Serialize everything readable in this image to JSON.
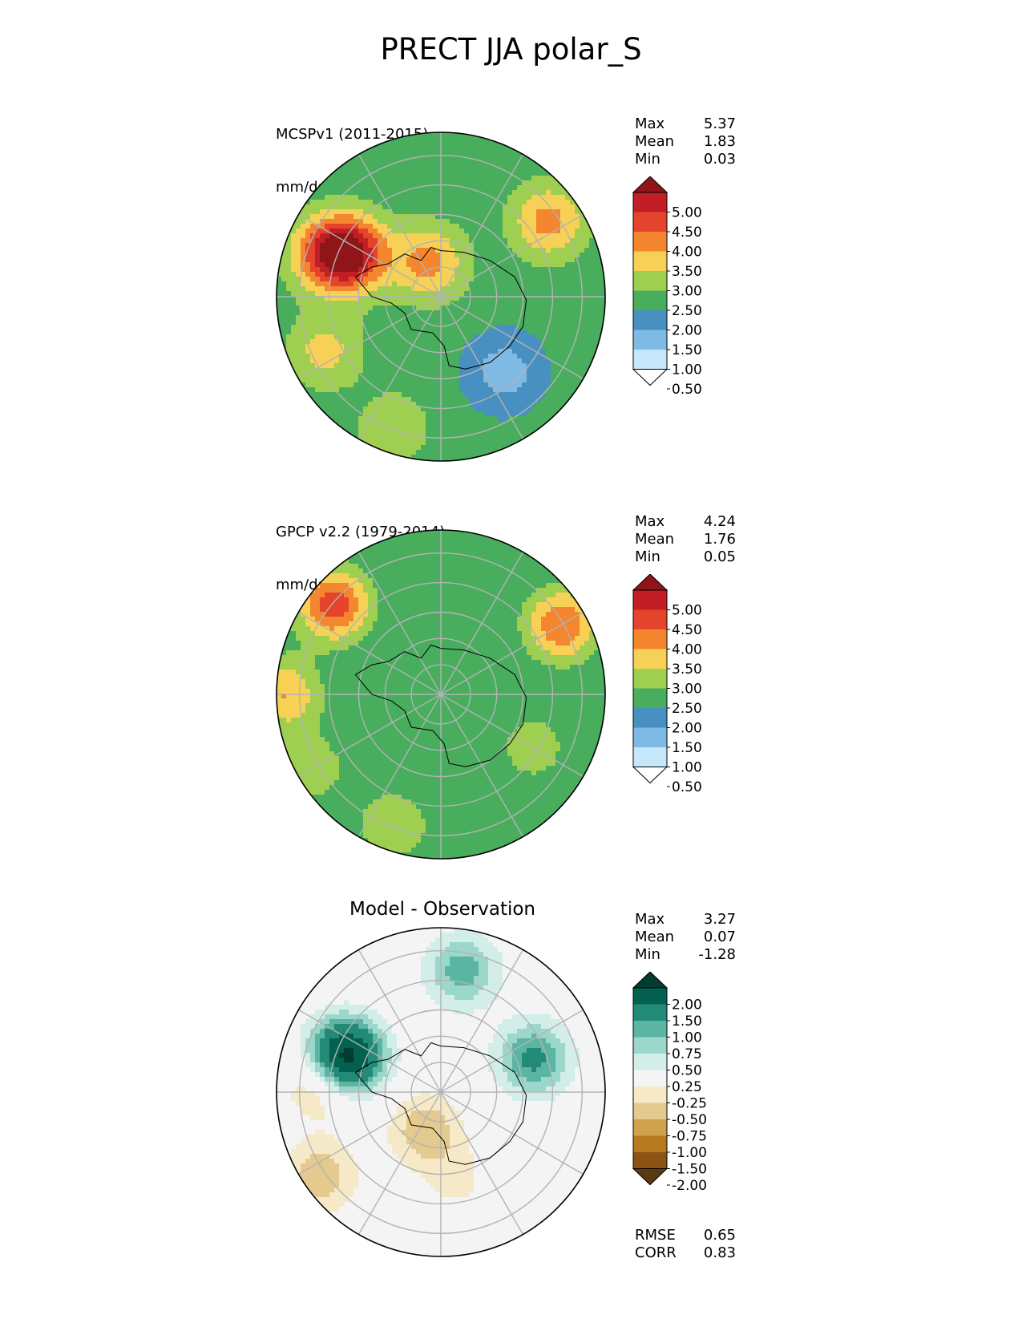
{
  "title": "PRECT JJA polar_S",
  "palettes": {
    "precip": [
      "#ffffff",
      "#c6e6f9",
      "#7ebae3",
      "#4890c1",
      "#49ad5e",
      "#9ecf50",
      "#f6d155",
      "#f4862f",
      "#e5432b",
      "#c21e25",
      "#8f1519"
    ],
    "diff": [
      "#5a3a10",
      "#8c5414",
      "#b7781f",
      "#d0a24f",
      "#e4ca8e",
      "#f5e9c8",
      "#f4f4f4",
      "#d3eee9",
      "#9bd8cb",
      "#5bb5a3",
      "#248a78",
      "#02624f",
      "#013c2e"
    ]
  },
  "chart_data": [
    {
      "type": "heatmap",
      "projection": "south-polar-stereographic",
      "title_lines": [
        "MCSPv1 (2011-2015)",
        "mm/day"
      ],
      "stats": {
        "max": "5.37",
        "mean": "1.83",
        "min": "0.03"
      },
      "colorbar": {
        "ticks": [
          "5.00",
          "4.50",
          "4.00",
          "3.50",
          "3.00",
          "2.50",
          "2.00",
          "1.50",
          "1.00",
          "0.50"
        ],
        "extend": "both"
      },
      "field": {
        "base": 2.2,
        "zones": [
          {
            "deg": 310,
            "r": 0.6,
            "v": -1.0
          },
          {
            "deg": 35,
            "r": 0.8,
            "v": 1.5
          },
          {
            "deg": 110,
            "r": 0.22,
            "v": 1.5
          },
          {
            "deg": 155,
            "r": 0.62,
            "v": 3.0
          },
          {
            "deg": 160,
            "r": 0.78,
            "v": 1.2
          },
          {
            "deg": 205,
            "r": 0.78,
            "v": 1.0
          },
          {
            "deg": 250,
            "r": 0.85,
            "v": 0.7
          }
        ]
      }
    },
    {
      "type": "heatmap",
      "projection": "south-polar-stereographic",
      "title_lines": [
        "GPCP v2.2 (1979-2014)",
        "mm/day"
      ],
      "stats": {
        "max": "4.24",
        "mean": "1.76",
        "min": "0.05"
      },
      "colorbar": {
        "ticks": [
          "5.00",
          "4.50",
          "4.00",
          "3.50",
          "3.00",
          "2.50",
          "2.00",
          "1.50",
          "1.00",
          "0.50"
        ],
        "extend": "both"
      },
      "field": {
        "base": 2.0,
        "zones": [
          {
            "deg": 330,
            "r": 0.65,
            "v": 0.8
          },
          {
            "deg": 30,
            "r": 0.85,
            "v": 2.0
          },
          {
            "deg": 140,
            "r": 0.85,
            "v": 2.3
          },
          {
            "deg": 180,
            "r": 0.95,
            "v": 1.5
          },
          {
            "deg": 210,
            "r": 0.9,
            "v": 0.8
          },
          {
            "deg": 250,
            "r": 0.85,
            "v": 1.0
          }
        ]
      }
    },
    {
      "type": "heatmap",
      "projection": "south-polar-stereographic",
      "title_lines": [
        "Model - Observation"
      ],
      "stats": {
        "max": "3.27",
        "mean": "0.07",
        "min": "-1.28"
      },
      "colorbar": {
        "ticks": [
          "2.00",
          "1.50",
          "1.00",
          "0.75",
          "0.50",
          "0.25",
          "-0.25",
          "-0.50",
          "-0.75",
          "-1.00",
          "-1.50",
          "-2.00"
        ],
        "extend": "both"
      },
      "extra_stats": {
        "rmse": "0.65",
        "corr": "0.83"
      },
      "field": {
        "base": 0.0,
        "zones": [
          {
            "deg": 160,
            "r": 0.62,
            "v": 2.4
          },
          {
            "deg": 175,
            "r": 0.72,
            "v": -0.8
          },
          {
            "deg": 20,
            "r": 0.6,
            "v": 1.1
          },
          {
            "deg": 80,
            "r": 0.75,
            "v": 0.9
          },
          {
            "deg": 248,
            "r": 0.25,
            "v": -0.7
          },
          {
            "deg": 280,
            "r": 0.55,
            "v": -0.3
          },
          {
            "deg": 215,
            "r": 0.9,
            "v": -0.7
          }
        ]
      }
    }
  ],
  "labels": {
    "max": "Max",
    "mean": "Mean",
    "min": "Min",
    "rmse": "RMSE",
    "corr": "CORR"
  }
}
